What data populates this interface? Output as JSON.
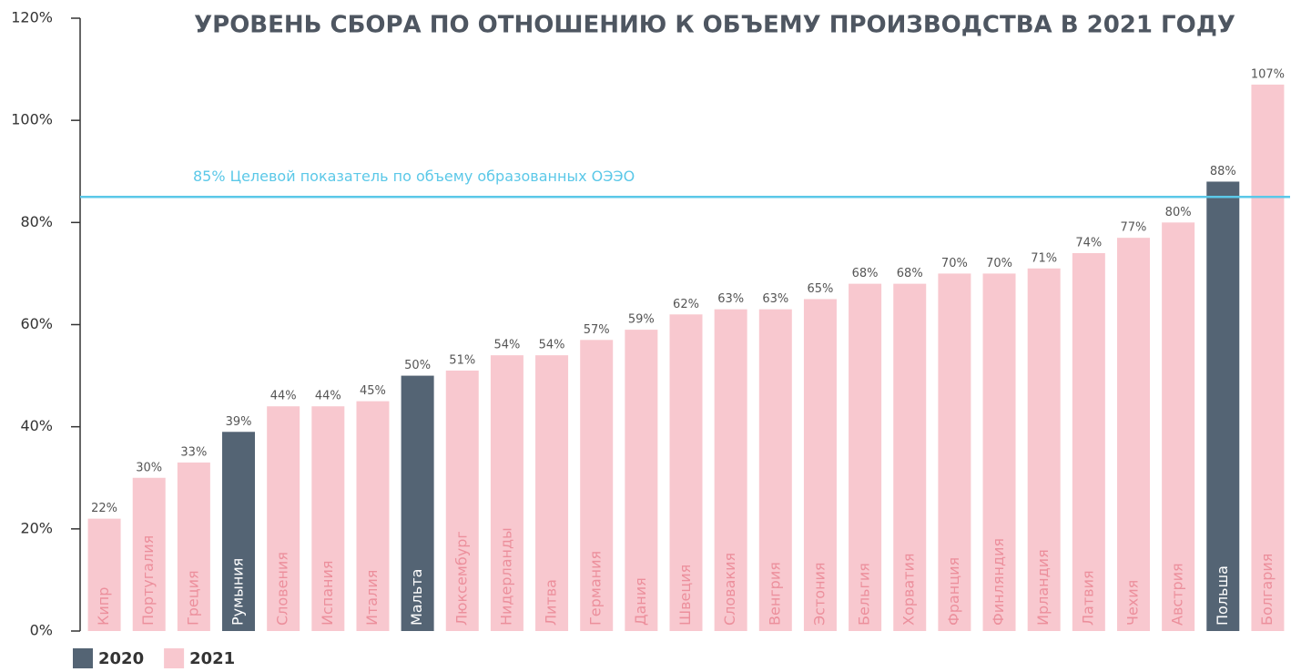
{
  "chart_data": {
    "type": "bar",
    "title": "УРОВЕНЬ СБОРА ПО ОТНОШЕНИЮ К ОБЪЕМУ ПРОИЗВОДСТВА В 2021 ГОДУ",
    "categories": [
      "Кипр",
      "Португалия",
      "Греция",
      "Румыния",
      "Словения",
      "Испания",
      "Италия",
      "Мальта",
      "Люксембург",
      "Нидерланды",
      "Литва",
      "Германия",
      "Дания",
      "Швеция",
      "Словакия",
      "Венгрия",
      "Эстония",
      "Бельгия",
      "Хорватия",
      "Франция",
      "Финляндия",
      "Ирландия",
      "Латвия",
      "Чехия",
      "Австрия",
      "Польша",
      "Болгария"
    ],
    "series": [
      {
        "name": "2020",
        "color": "#546474",
        "values": [
          null,
          null,
          null,
          39,
          null,
          null,
          null,
          50,
          null,
          null,
          null,
          null,
          null,
          null,
          null,
          null,
          null,
          null,
          null,
          null,
          null,
          null,
          null,
          null,
          null,
          88,
          null
        ],
        "value_labels": [
          null,
          null,
          null,
          "39%",
          null,
          null,
          null,
          "50%",
          null,
          null,
          null,
          null,
          null,
          null,
          null,
          null,
          null,
          null,
          null,
          null,
          null,
          null,
          null,
          null,
          null,
          "88%",
          null
        ]
      },
      {
        "name": "2021",
        "color": "#f8c8cf",
        "values": [
          22,
          30,
          33,
          null,
          44,
          44,
          45,
          null,
          51,
          54,
          54,
          57,
          59,
          62,
          63,
          63,
          65,
          68,
          68,
          70,
          70,
          71,
          74,
          77,
          80,
          null,
          107
        ],
        "value_labels": [
          "22%",
          "30%",
          "33%",
          null,
          "44%",
          "44%",
          "45%",
          null,
          "51%",
          "54%",
          "54%",
          "57%",
          "59%",
          "62%",
          "63%",
          "63%",
          "65%",
          "68%",
          "68%",
          "70%",
          "70%",
          "71%",
          "74%",
          "77%",
          "80%",
          null,
          "107%"
        ]
      }
    ],
    "ylim": [
      0,
      120
    ],
    "yticks": [
      {
        "value": 0,
        "label": "0%"
      },
      {
        "value": 20,
        "label": "20%"
      },
      {
        "value": 40,
        "label": "40%"
      },
      {
        "value": 60,
        "label": "60%"
      },
      {
        "value": 80,
        "label": "80%"
      },
      {
        "value": 100,
        "label": "100%"
      },
      {
        "value": 120,
        "label": "120%"
      }
    ],
    "reference_line": {
      "value": 85,
      "label": "85% Целевой показатель по объему образованных ОЭЭО",
      "color": "#5bc8e8"
    },
    "legend": "bottom-left"
  }
}
